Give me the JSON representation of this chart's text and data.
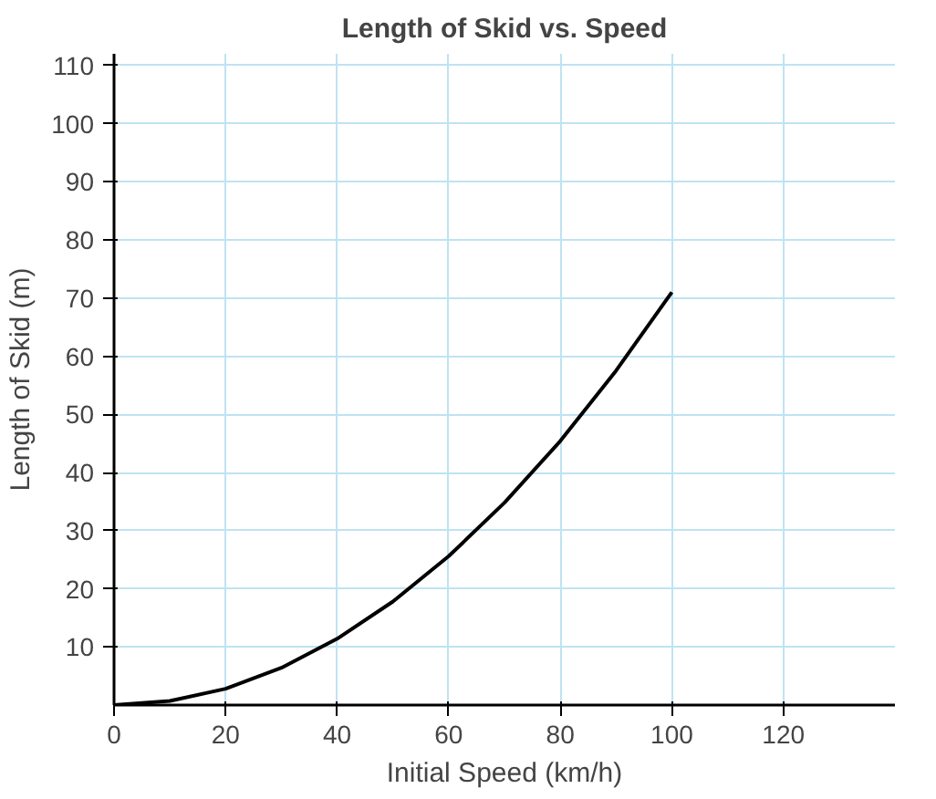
{
  "chart_data": {
    "type": "line",
    "title": "Length of Skid vs. Speed",
    "xlabel": "Initial Speed (km/h)",
    "ylabel": "Length of Skid (m)",
    "x": [
      0,
      10,
      20,
      30,
      40,
      50,
      60,
      70,
      80,
      90,
      100
    ],
    "series": [
      {
        "color": "#000000",
        "values": [
          0,
          0.7,
          2.8,
          6.4,
          11.4,
          17.8,
          25.6,
          34.8,
          45.4,
          57.5,
          71
        ]
      }
    ],
    "xlim": [
      0,
      140
    ],
    "ylim": [
      0,
      112
    ],
    "xticks": [
      0,
      20,
      40,
      60,
      80,
      100,
      120
    ],
    "yticks": [
      10,
      20,
      30,
      40,
      50,
      60,
      70,
      80,
      90,
      100,
      110
    ],
    "grid": true,
    "marker": "none",
    "line_style": "solid"
  }
}
